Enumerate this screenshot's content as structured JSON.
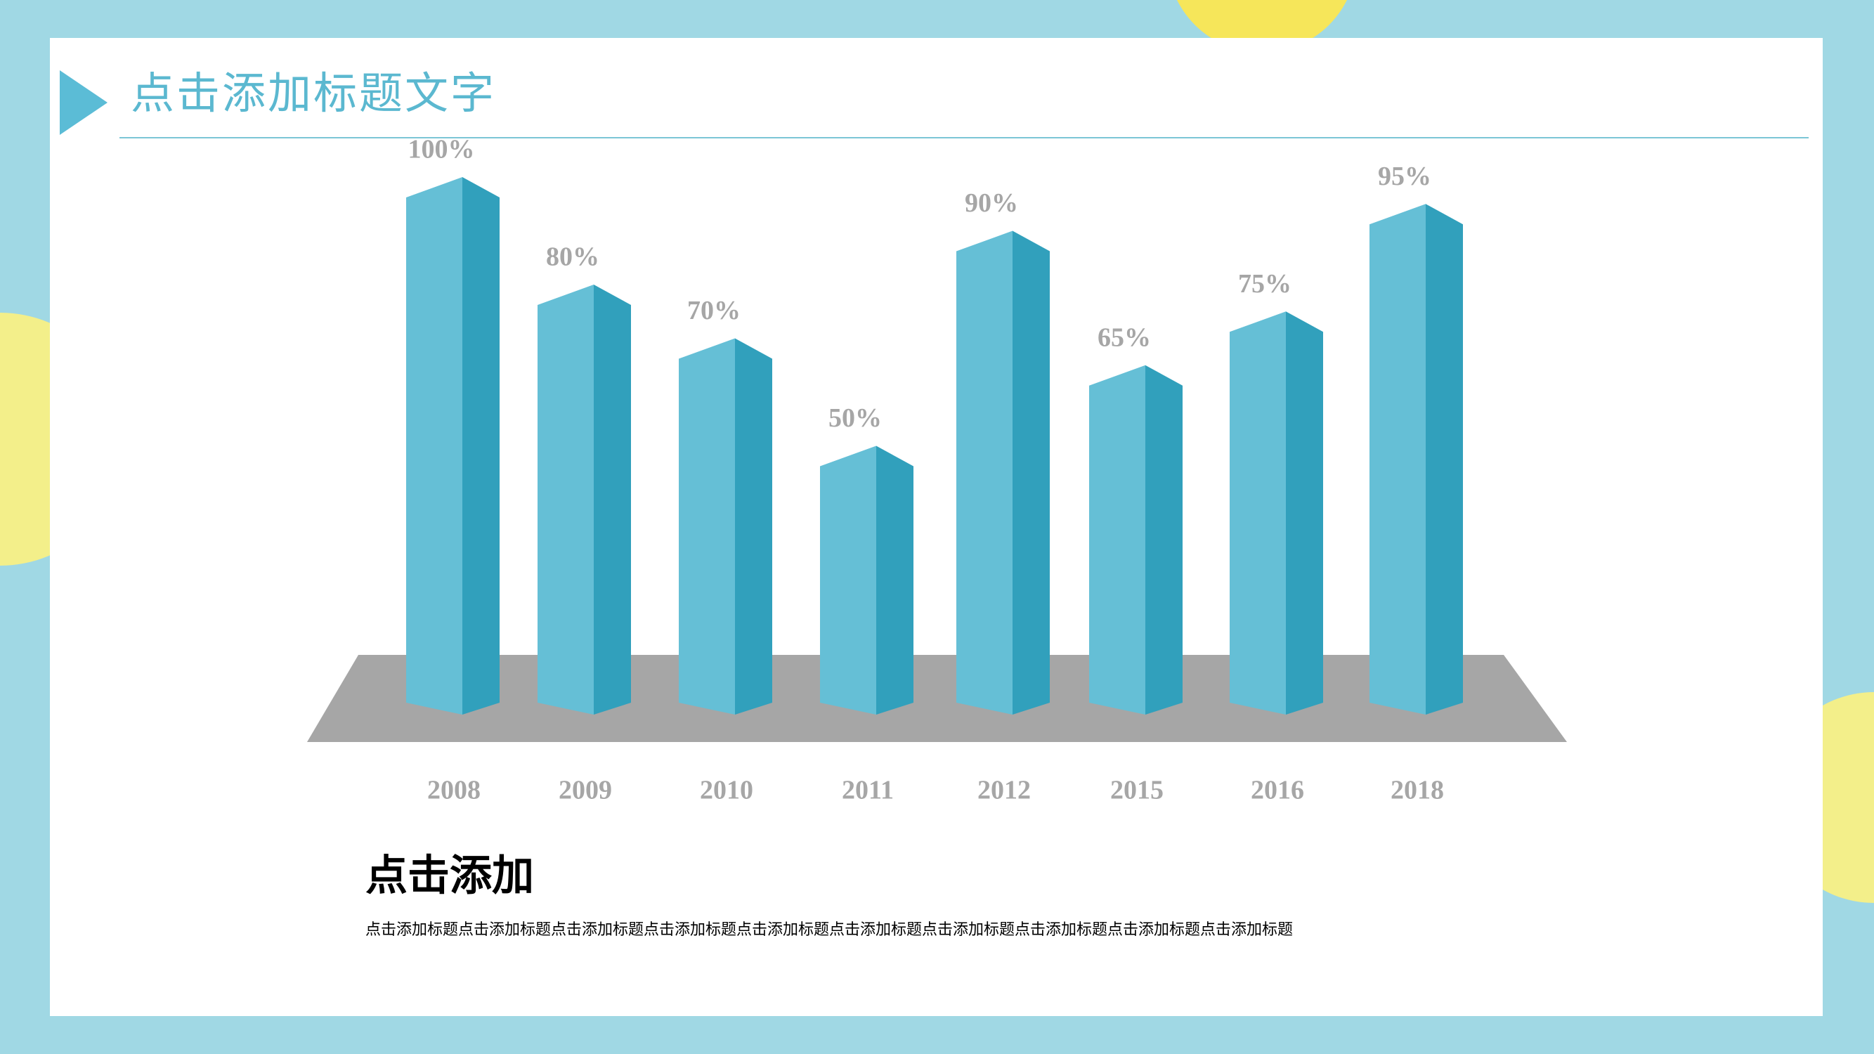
{
  "header": {
    "title": "点击添加标题文字"
  },
  "chart_data": {
    "type": "bar3d",
    "categories": [
      "2008",
      "2009",
      "2010",
      "2011",
      "2012",
      "2015",
      "2016",
      "2018"
    ],
    "values": [
      100,
      80,
      70,
      50,
      90,
      65,
      75,
      95
    ],
    "value_labels": [
      "100%",
      "80%",
      "70%",
      "50%",
      "90%",
      "65%",
      "75%",
      "95%"
    ],
    "color": "#65bfd6"
  },
  "text_block": {
    "heading": "点击添加",
    "body": "点击添加标题点击添加标题点击添加标题点击添加标题点击添加标题点击添加标题点击添加标题点击添加标题点击添加标题点击添加标题"
  }
}
